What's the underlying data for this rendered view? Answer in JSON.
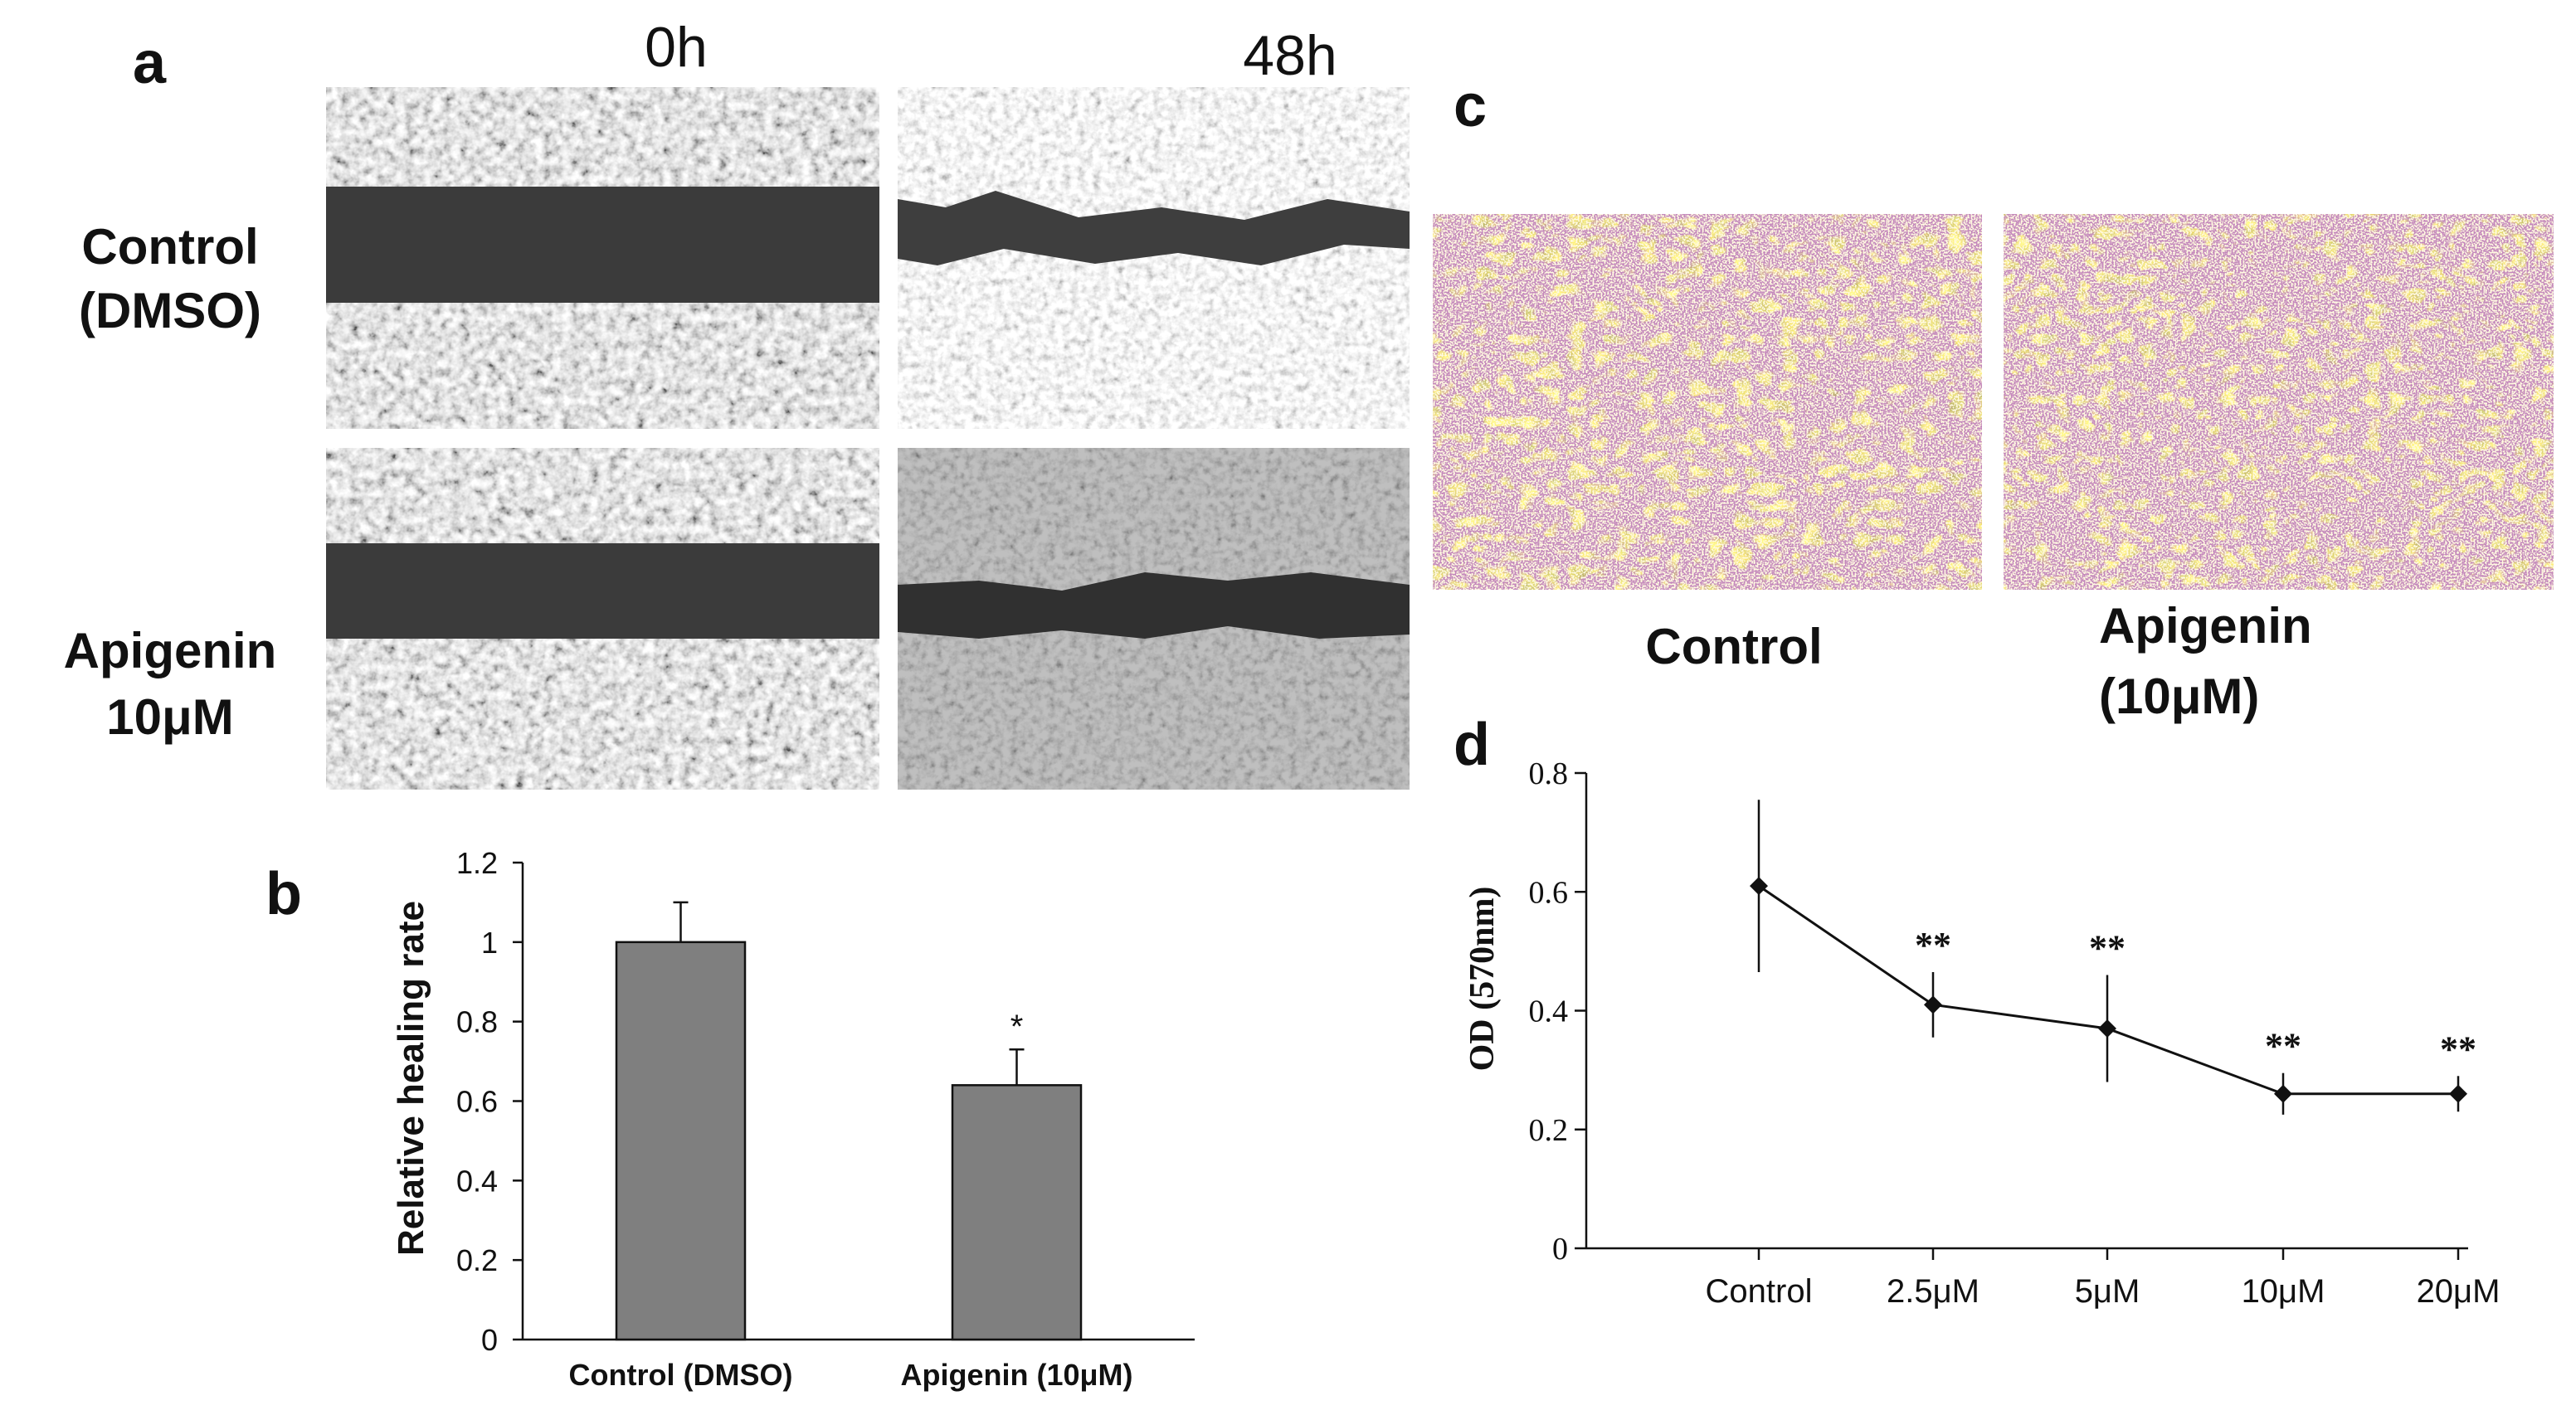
{
  "panels": {
    "a": {
      "letter": "a",
      "time_labels": [
        "0h",
        "48h"
      ],
      "row_labels": [
        {
          "line1": "Control",
          "line2": "(DMSO)"
        },
        {
          "line1": "Apigenin",
          "line2": "10μM"
        }
      ]
    },
    "b": {
      "letter": "b"
    },
    "c": {
      "letter": "c",
      "captions": [
        {
          "line1": "Control",
          "line2": ""
        },
        {
          "line1": "Apigenin",
          "line2": "(10μM)"
        }
      ]
    },
    "d": {
      "letter": "d"
    }
  },
  "colors": {
    "bar_fill": "#7f7f7f",
    "micrograph_dark": "#3a3a3a",
    "micrograph_light": "#cfcfcf",
    "stain_bg": "#9a8a3c",
    "stain_cells": "#8a3f7f"
  },
  "chart_data": [
    {
      "panel": "b",
      "type": "bar",
      "categories": [
        "Control (DMSO)",
        "Apigenin (10μM)"
      ],
      "values": [
        1.0,
        0.64
      ],
      "errors": [
        0.1,
        0.09
      ],
      "significance": [
        "",
        "*"
      ],
      "xlabel": "",
      "ylabel": "Relative healing rate",
      "ylim": [
        0,
        1.2
      ],
      "yticks": [
        "0",
        "0.2",
        "0.4",
        "0.6",
        "0.8",
        "1",
        "1.2"
      ],
      "grid": false
    },
    {
      "panel": "d",
      "type": "line",
      "categories": [
        "Control",
        "2.5μM",
        "5μM",
        "10μM",
        "20μM"
      ],
      "values": [
        0.61,
        0.41,
        0.37,
        0.26,
        0.26
      ],
      "errors": [
        0.145,
        0.055,
        0.09,
        0.035,
        0.03
      ],
      "significance": [
        "",
        "**",
        "**",
        "**",
        "**"
      ],
      "xlabel": "",
      "ylabel": "OD (570nm)",
      "ylim": [
        0,
        0.8
      ],
      "yticks": [
        "0",
        "0.2",
        "0.4",
        "0.6",
        "0.8"
      ],
      "grid": false
    }
  ]
}
